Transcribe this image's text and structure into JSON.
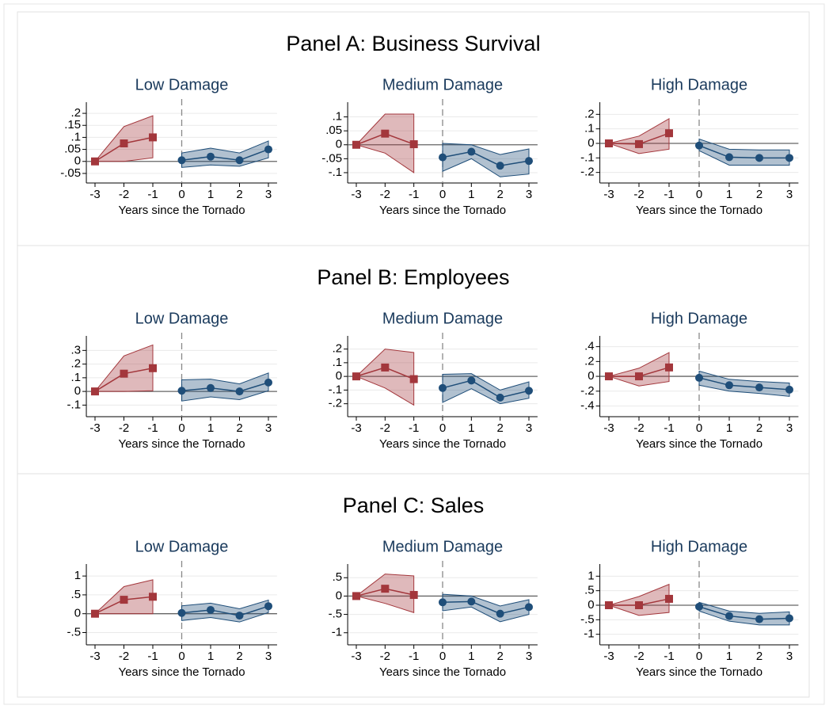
{
  "panels": [
    {
      "title": "Panel A: Business Survival"
    },
    {
      "title": "Panel B: Employees"
    },
    {
      "title": "Panel C: Sales"
    }
  ],
  "chart_data": [
    {
      "type": "line",
      "title": "Low Damage",
      "xlabel": "Years since the Tornado",
      "xlim": [
        -3.3,
        3.3
      ],
      "xticks": [
        -3,
        -2,
        -1,
        0,
        1,
        2,
        3
      ],
      "ylim": [
        -0.07,
        0.22
      ],
      "yticks": [
        {
          "value": 0.2,
          "label": ".2"
        },
        {
          "value": 0.15,
          "label": ".15"
        },
        {
          "value": 0.1,
          "label": ".1"
        },
        {
          "value": 0.05,
          "label": ".05"
        },
        0,
        {
          "value": -0.05,
          "label": "-.05"
        }
      ],
      "grid": true,
      "hline": 0,
      "vline": 0,
      "series": [
        {
          "color": "#a3373c",
          "marker": "square",
          "x": [
            -3,
            -2,
            -1
          ],
          "values": [
            0,
            0.075,
            0.1
          ],
          "lower": [
            0,
            0,
            0.015
          ],
          "upper": [
            0,
            0.145,
            0.19
          ]
        },
        {
          "color": "#1f4e79",
          "marker": "circle",
          "x": [
            0,
            1,
            2,
            3
          ],
          "values": [
            0.005,
            0.02,
            0.005,
            0.05
          ],
          "lower": [
            -0.025,
            -0.015,
            -0.02,
            0.015
          ],
          "upper": [
            0.035,
            0.055,
            0.035,
            0.085
          ]
        }
      ]
    },
    {
      "type": "line",
      "title": "Medium Damage",
      "xlabel": "Years since the Tornado",
      "xlim": [
        -3.3,
        3.3
      ],
      "xticks": [
        -3,
        -2,
        -1,
        0,
        1,
        2,
        3
      ],
      "ylim": [
        -0.12,
        0.13
      ],
      "yticks": [
        {
          "value": 0.1,
          "label": ".1"
        },
        {
          "value": 0.05,
          "label": ".05"
        },
        0,
        {
          "value": -0.05,
          "label": "-.05"
        },
        {
          "value": -0.1,
          "label": "-.1"
        }
      ],
      "grid": true,
      "hline": 0,
      "vline": 0,
      "series": [
        {
          "color": "#a3373c",
          "marker": "square",
          "x": [
            -3,
            -2,
            -1
          ],
          "values": [
            0,
            0.04,
            0.002
          ],
          "lower": [
            0,
            -0.03,
            -0.1
          ],
          "upper": [
            0,
            0.11,
            0.11
          ]
        },
        {
          "color": "#1f4e79",
          "marker": "circle",
          "x": [
            0,
            1,
            2,
            3
          ],
          "values": [
            -0.045,
            -0.025,
            -0.075,
            -0.058
          ],
          "lower": [
            -0.095,
            -0.05,
            -0.115,
            -0.105
          ],
          "upper": [
            0.005,
            0,
            -0.035,
            -0.015
          ]
        }
      ]
    },
    {
      "type": "line",
      "title": "High Damage",
      "xlabel": "Years since the Tornado",
      "xlim": [
        -3.3,
        3.3
      ],
      "xticks": [
        -3,
        -2,
        -1,
        0,
        1,
        2,
        3
      ],
      "ylim": [
        -0.24,
        0.24
      ],
      "yticks": [
        {
          "value": 0.2,
          "label": ".2"
        },
        {
          "value": 0.1,
          "label": ".1"
        },
        0,
        {
          "value": -0.1,
          "label": "-.1"
        },
        {
          "value": -0.2,
          "label": "-.2"
        }
      ],
      "grid": true,
      "hline": 0,
      "vline": 0,
      "series": [
        {
          "color": "#a3373c",
          "marker": "square",
          "x": [
            -3,
            -2,
            -1
          ],
          "values": [
            0,
            -0.005,
            0.07
          ],
          "lower": [
            0,
            -0.07,
            -0.04
          ],
          "upper": [
            0,
            0.05,
            0.17
          ]
        },
        {
          "color": "#1f4e79",
          "marker": "circle",
          "x": [
            0,
            1,
            2,
            3
          ],
          "values": [
            -0.015,
            -0.095,
            -0.1,
            -0.1
          ],
          "lower": [
            -0.05,
            -0.15,
            -0.15,
            -0.15
          ],
          "upper": [
            0.03,
            -0.04,
            -0.045,
            -0.045
          ]
        }
      ]
    },
    {
      "type": "line",
      "title": "Low Damage",
      "xlabel": "Years since the Tornado",
      "xlim": [
        -3.3,
        3.3
      ],
      "xticks": [
        -3,
        -2,
        -1,
        0,
        1,
        2,
        3
      ],
      "ylim": [
        -0.15,
        0.36
      ],
      "yticks": [
        {
          "value": 0.3,
          "label": ".3"
        },
        {
          "value": 0.2,
          "label": ".2"
        },
        {
          "value": 0.1,
          "label": ".1"
        },
        0,
        {
          "value": -0.1,
          "label": "-.1"
        }
      ],
      "grid": true,
      "hline": 0,
      "vline": 0,
      "series": [
        {
          "color": "#a3373c",
          "marker": "square",
          "x": [
            -3,
            -2,
            -1
          ],
          "values": [
            0,
            0.13,
            0.17
          ],
          "lower": [
            0,
            0,
            0.005
          ],
          "upper": [
            0,
            0.26,
            0.34
          ]
        },
        {
          "color": "#1f4e79",
          "marker": "circle",
          "x": [
            0,
            1,
            2,
            3
          ],
          "values": [
            0.005,
            0.025,
            0,
            0.065
          ],
          "lower": [
            -0.07,
            -0.04,
            -0.06,
            0.005
          ],
          "upper": [
            0.085,
            0.09,
            0.055,
            0.135
          ]
        }
      ]
    },
    {
      "type": "line",
      "title": "Medium Damage",
      "xlabel": "Years since the Tornado",
      "xlim": [
        -3.3,
        3.3
      ],
      "xticks": [
        -3,
        -2,
        -1,
        0,
        1,
        2,
        3
      ],
      "ylim": [
        -0.26,
        0.25
      ],
      "yticks": [
        {
          "value": 0.2,
          "label": ".2"
        },
        {
          "value": 0.1,
          "label": ".1"
        },
        0,
        {
          "value": -0.1,
          "label": "-.1"
        },
        {
          "value": -0.2,
          "label": "-.2"
        }
      ],
      "grid": true,
      "hline": 0,
      "vline": 0,
      "series": [
        {
          "color": "#a3373c",
          "marker": "square",
          "x": [
            -3,
            -2,
            -1
          ],
          "values": [
            0,
            0.065,
            -0.02
          ],
          "lower": [
            0,
            -0.085,
            -0.21
          ],
          "upper": [
            0,
            0.2,
            0.175
          ]
        },
        {
          "color": "#1f4e79",
          "marker": "circle",
          "x": [
            0,
            1,
            2,
            3
          ],
          "values": [
            -0.085,
            -0.03,
            -0.155,
            -0.105
          ],
          "lower": [
            -0.19,
            -0.09,
            -0.2,
            -0.16
          ],
          "upper": [
            0.015,
            0.02,
            -0.1,
            -0.04
          ]
        }
      ]
    },
    {
      "type": "line",
      "title": "High Damage",
      "xlabel": "Years since the Tornado",
      "xlim": [
        -3.3,
        3.3
      ],
      "xticks": [
        -3,
        -2,
        -1,
        0,
        1,
        2,
        3
      ],
      "ylim": [
        -0.48,
        0.46
      ],
      "yticks": [
        {
          "value": 0.4,
          "label": ".4"
        },
        {
          "value": 0.2,
          "label": ".2"
        },
        0,
        {
          "value": -0.2,
          "label": "-.2"
        },
        {
          "value": -0.4,
          "label": "-.4"
        }
      ],
      "grid": true,
      "hline": 0,
      "vline": 0,
      "series": [
        {
          "color": "#a3373c",
          "marker": "square",
          "x": [
            -3,
            -2,
            -1
          ],
          "values": [
            0,
            0,
            0.12
          ],
          "lower": [
            0,
            -0.13,
            -0.07
          ],
          "upper": [
            0,
            0.11,
            0.32
          ]
        },
        {
          "color": "#1f4e79",
          "marker": "circle",
          "x": [
            0,
            1,
            2,
            3
          ],
          "values": [
            -0.02,
            -0.12,
            -0.15,
            -0.18
          ],
          "lower": [
            -0.12,
            -0.2,
            -0.23,
            -0.27
          ],
          "upper": [
            0.07,
            -0.04,
            -0.07,
            -0.09
          ]
        }
      ]
    },
    {
      "type": "line",
      "title": "Low Damage",
      "xlabel": "Years since the Tornado",
      "xlim": [
        -3.3,
        3.3
      ],
      "xticks": [
        -3,
        -2,
        -1,
        0,
        1,
        2,
        3
      ],
      "ylim": [
        -0.7,
        1.15
      ],
      "yticks": [
        1,
        {
          "value": 0.5,
          "label": ".5"
        },
        0,
        {
          "value": -0.5,
          "label": "-.5"
        }
      ],
      "grid": true,
      "hline": 0,
      "vline": 0,
      "series": [
        {
          "color": "#a3373c",
          "marker": "square",
          "x": [
            -3,
            -2,
            -1
          ],
          "values": [
            0,
            0.37,
            0.45
          ],
          "lower": [
            0,
            0,
            0
          ],
          "upper": [
            0,
            0.72,
            0.9
          ]
        },
        {
          "color": "#1f4e79",
          "marker": "circle",
          "x": [
            0,
            1,
            2,
            3
          ],
          "values": [
            0.02,
            0.1,
            -0.05,
            0.2
          ],
          "lower": [
            -0.18,
            -0.1,
            -0.22,
            0.03
          ],
          "upper": [
            0.21,
            0.28,
            0.13,
            0.36
          ]
        }
      ]
    },
    {
      "type": "line",
      "title": "Medium Damage",
      "xlabel": "Years since the Tornado",
      "xlim": [
        -3.3,
        3.3
      ],
      "xticks": [
        -3,
        -2,
        -1,
        0,
        1,
        2,
        3
      ],
      "ylim": [
        -1.2,
        0.7
      ],
      "yticks": [
        {
          "value": 0.5,
          "label": ".5"
        },
        0,
        {
          "value": -0.5,
          "label": "-.5"
        },
        -1
      ],
      "grid": true,
      "hline": 0,
      "vline": 0,
      "series": [
        {
          "color": "#a3373c",
          "marker": "square",
          "x": [
            -3,
            -2,
            -1
          ],
          "values": [
            0,
            0.2,
            0.03
          ],
          "lower": [
            0,
            -0.2,
            -0.45
          ],
          "upper": [
            0,
            0.6,
            0.55
          ]
        },
        {
          "color": "#1f4e79",
          "marker": "circle",
          "x": [
            0,
            1,
            2,
            3
          ],
          "values": [
            -0.17,
            -0.15,
            -0.48,
            -0.3
          ],
          "lower": [
            -0.4,
            -0.3,
            -0.7,
            -0.5
          ],
          "upper": [
            0.05,
            0,
            -0.27,
            -0.1
          ]
        }
      ]
    },
    {
      "type": "line",
      "title": "High Damage",
      "xlabel": "Years since the Tornado",
      "xlim": [
        -3.3,
        3.3
      ],
      "xticks": [
        -3,
        -2,
        -1,
        0,
        1,
        2,
        3
      ],
      "ylim": [
        -1.2,
        1.2
      ],
      "yticks": [
        1,
        {
          "value": 0.5,
          "label": ".5"
        },
        0,
        {
          "value": -0.5,
          "label": "-.5"
        },
        -1
      ],
      "grid": true,
      "hline": 0,
      "vline": 0,
      "series": [
        {
          "color": "#a3373c",
          "marker": "square",
          "x": [
            -3,
            -2,
            -1
          ],
          "values": [
            0,
            0,
            0.22
          ],
          "lower": [
            0,
            -0.35,
            -0.25
          ],
          "upper": [
            0,
            0.3,
            0.72
          ]
        },
        {
          "color": "#1f4e79",
          "marker": "circle",
          "x": [
            0,
            1,
            2,
            3
          ],
          "values": [
            -0.05,
            -0.37,
            -0.48,
            -0.45
          ],
          "lower": [
            -0.2,
            -0.55,
            -0.68,
            -0.68
          ],
          "upper": [
            0.1,
            -0.2,
            -0.28,
            -0.23
          ]
        }
      ]
    }
  ]
}
